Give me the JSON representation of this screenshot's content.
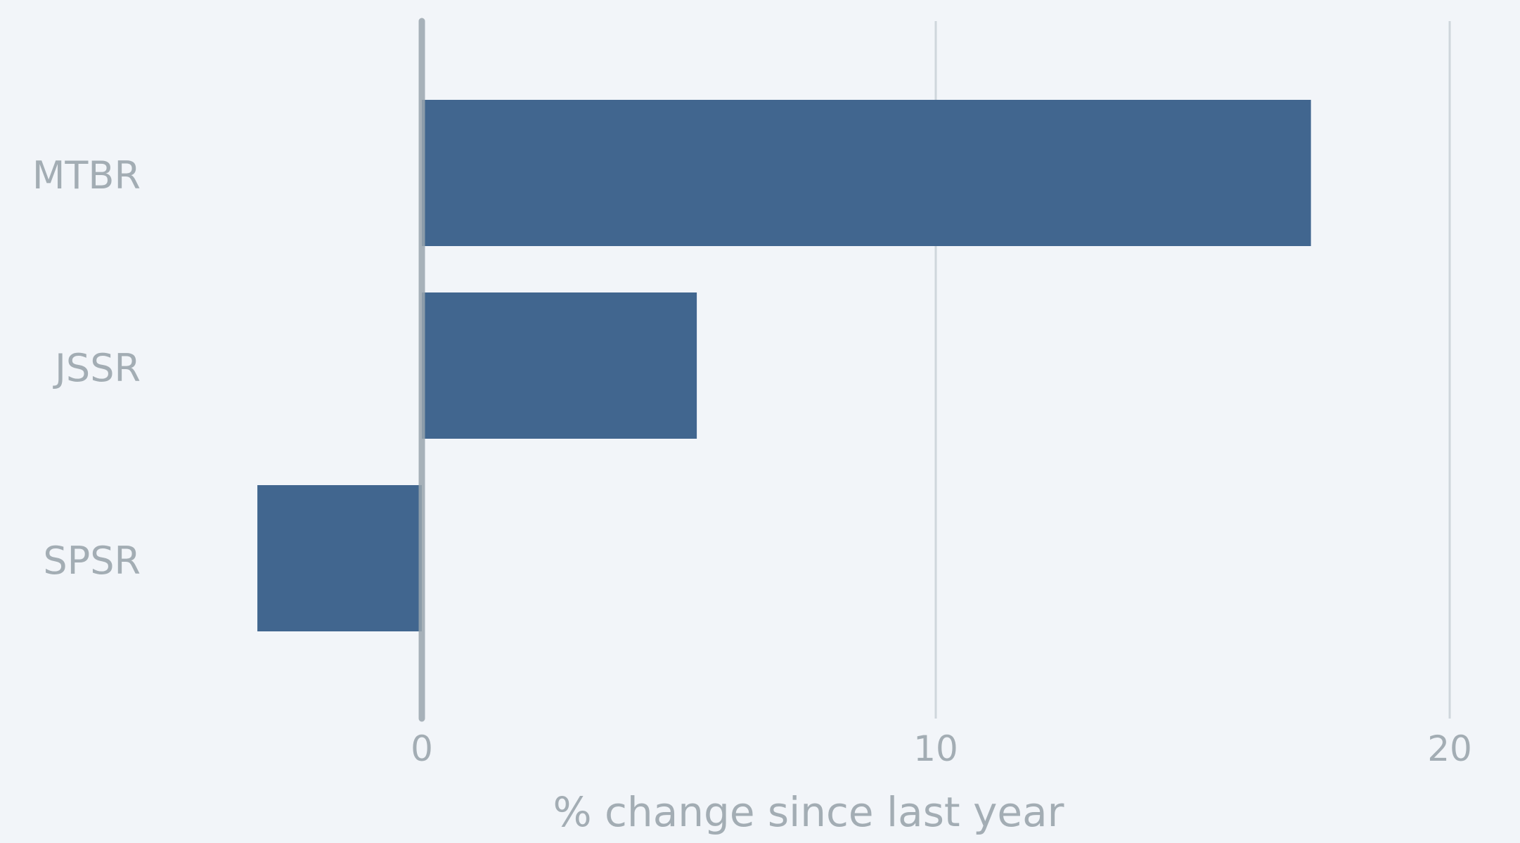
{
  "chart_data": {
    "type": "bar",
    "orientation": "horizontal",
    "categories": [
      "MTBR",
      "JSSR",
      "SPSR"
    ],
    "values": [
      17.3,
      5.35,
      -3.2
    ],
    "xlabel": "% change since last year",
    "xlim": [
      -5.5,
      21
    ],
    "xticks": [
      0,
      10,
      20
    ],
    "grid": true,
    "legend": "none",
    "colors": {
      "bar": "#41668f",
      "grid": "#cfd6dc",
      "zero_line": "#9aa6ae",
      "text": "#a3adb4",
      "background": "#f2f5f9"
    }
  }
}
